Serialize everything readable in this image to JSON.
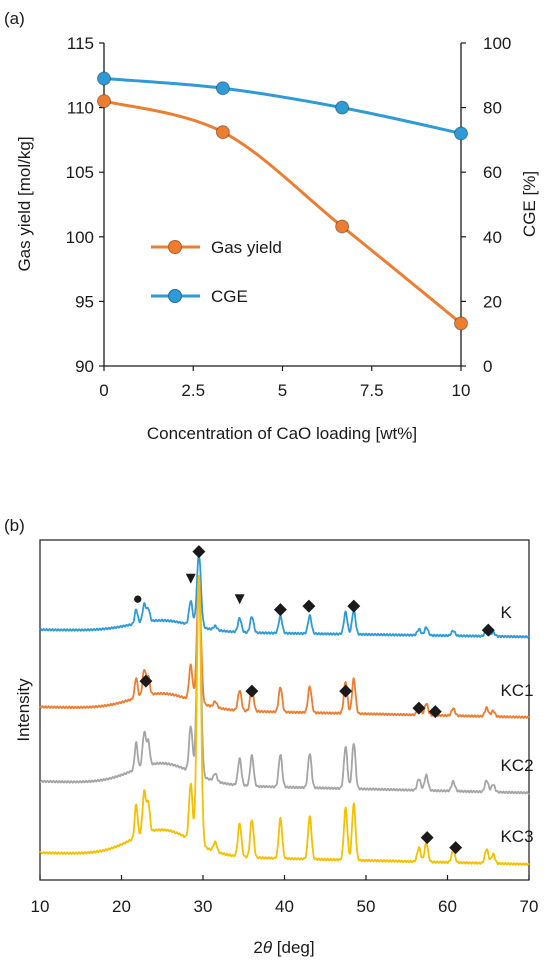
{
  "chart_data": [
    {
      "panel_label": "(a)",
      "type": "line",
      "xlabel": "Concentration of CaO loading [wt%]",
      "ylabel_left": "Gas yield [mol/kg]",
      "ylabel_right": "CGE [%]",
      "xlim": [
        0,
        10
      ],
      "ylim_left": [
        90,
        115
      ],
      "ylim_right": [
        0,
        100
      ],
      "xticks": [
        0,
        2.5,
        5,
        7.5,
        10
      ],
      "xtick_labels": [
        "0",
        "2.5",
        "5",
        "7.5",
        "10"
      ],
      "yticks_left": [
        90,
        95,
        100,
        105,
        110,
        115
      ],
      "ytick_labels_left": [
        "90",
        "95",
        "100",
        "105",
        "110",
        "115"
      ],
      "yticks_right": [
        0,
        20,
        40,
        60,
        80,
        100
      ],
      "ytick_labels_right": [
        "0",
        "20",
        "40",
        "60",
        "80",
        "100"
      ],
      "grid": false,
      "legend_position": "center-left",
      "series": [
        {
          "name": "Gas yield",
          "axis": "left",
          "color": "#ED7D31",
          "x": [
            0,
            3.33,
            6.67,
            10
          ],
          "y": [
            110.5,
            108.1,
            100.8,
            93.3
          ]
        },
        {
          "name": "CGE",
          "axis": "right",
          "color": "#2E9BD6",
          "x": [
            0,
            3.33,
            6.67,
            10
          ],
          "y": [
            89,
            86,
            80,
            72
          ]
        }
      ]
    },
    {
      "panel_label": "(b)",
      "type": "line",
      "xlabel": "2θ [deg]",
      "xlabel_prefix": "2",
      "xlabel_symbol": "θ",
      "xlabel_suffix": " [deg]",
      "ylabel": "Intensity",
      "xlim": [
        10,
        70
      ],
      "xticks": [
        10,
        20,
        30,
        40,
        50,
        60,
        70
      ],
      "xtick_labels": [
        "10",
        "20",
        "30",
        "40",
        "50",
        "60",
        "70"
      ],
      "grid": false,
      "series": [
        {
          "name": "K",
          "color": "#2E9BD6",
          "baseline_level": 0.73
        },
        {
          "name": "KC1",
          "color": "#ED7D31",
          "baseline_level": 0.5
        },
        {
          "name": "KC2",
          "color": "#A5A5A5",
          "baseline_level": 0.28
        },
        {
          "name": "KC3",
          "color": "#F5C000",
          "baseline_level": 0.07
        }
      ],
      "peak_markers": [
        {
          "symbol": "◆",
          "x": 29.5,
          "level": 0.97
        },
        {
          "symbol": "▼",
          "x": 28.5,
          "level": 0.89
        },
        {
          "symbol": "●",
          "x": 22.0,
          "level": 0.83
        },
        {
          "symbol": "▼",
          "x": 34.5,
          "level": 0.83
        },
        {
          "symbol": "◆",
          "x": 39.5,
          "level": 0.8
        },
        {
          "symbol": "◆",
          "x": 43.0,
          "level": 0.81
        },
        {
          "symbol": "◆",
          "x": 48.5,
          "level": 0.81
        },
        {
          "symbol": "◆",
          "x": 65.0,
          "level": 0.74
        },
        {
          "symbol": "◆",
          "x": 23.0,
          "level": 0.59
        },
        {
          "symbol": "◆",
          "x": 36.0,
          "level": 0.56
        },
        {
          "symbol": "◆",
          "x": 47.5,
          "level": 0.56
        },
        {
          "symbol": "◆",
          "x": 56.5,
          "level": 0.51
        },
        {
          "symbol": "◆",
          "x": 58.5,
          "level": 0.5
        },
        {
          "symbol": "◆",
          "x": 57.5,
          "level": 0.13
        },
        {
          "symbol": "◆",
          "x": 61.0,
          "level": 0.1
        }
      ]
    }
  ]
}
